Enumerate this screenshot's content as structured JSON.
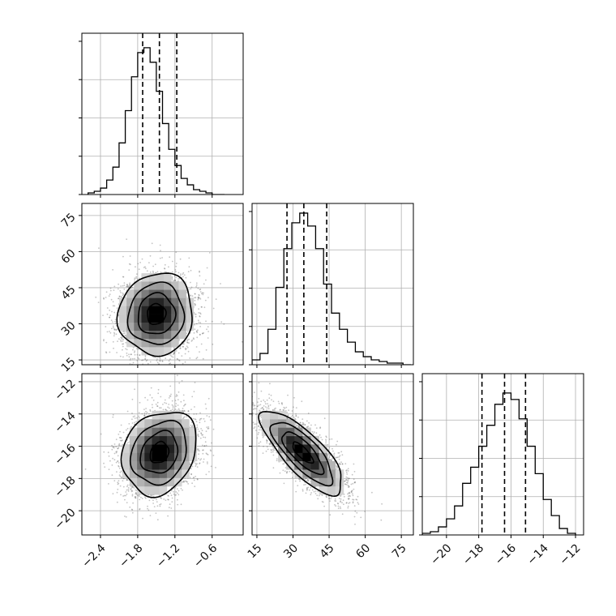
{
  "chart_data": {
    "type": "corner",
    "colors": {
      "ink": "#000000",
      "grid": "#b0b0b0",
      "points": "#555555"
    },
    "parameters": [
      {
        "ticks": [
          -2.4,
          -1.8,
          -1.2,
          -0.6
        ],
        "tick_labels": [
          "−2.4",
          "−1.8",
          "−1.2",
          "−0.6"
        ],
        "range": [
          -2.7,
          -0.1
        ]
      },
      {
        "ticks": [
          15,
          30,
          45,
          60,
          75
        ],
        "tick_labels": [
          "15",
          "30",
          "45",
          "60",
          "75"
        ],
        "range": [
          13,
          80
        ]
      },
      {
        "ticks": [
          -20,
          -18,
          -16,
          -14,
          -12
        ],
        "tick_labels": [
          "−20",
          "−18",
          "−16",
          "−14",
          "−12"
        ],
        "range": [
          -21.5,
          -11.5
        ]
      }
    ],
    "histograms": [
      {
        "param": 0,
        "bin_edges": [
          -2.6,
          -2.5,
          -2.4,
          -2.3,
          -2.2,
          -2.1,
          -2.0,
          -1.9,
          -1.8,
          -1.7,
          -1.6,
          -1.5,
          -1.4,
          -1.3,
          -1.2,
          -1.1,
          -1.0,
          -0.9,
          -0.8,
          -0.7,
          -0.6,
          -0.5,
          -0.4
        ],
        "counts": [
          1,
          2,
          4,
          9,
          17,
          32,
          52,
          73,
          88,
          91,
          82,
          64,
          44,
          28,
          18,
          10,
          6,
          3,
          2,
          1,
          0,
          0
        ],
        "quantiles": [
          -1.72,
          -1.45,
          -1.17
        ],
        "ymax": 100
      },
      {
        "param": 1,
        "bin_edges": [
          13,
          16.3,
          19.6,
          22.9,
          26.2,
          29.5,
          32.8,
          36.1,
          39.4,
          42.7,
          46.0,
          49.3,
          52.6,
          55.9,
          59.2,
          62.5,
          65.8,
          69.1,
          72.4,
          75.7,
          79
        ],
        "counts": [
          3,
          7,
          22,
          48,
          72,
          88,
          94,
          86,
          72,
          50,
          32,
          22,
          14,
          8,
          5,
          3,
          2,
          1,
          1,
          0
        ],
        "quantiles": [
          27.5,
          34.5,
          44.0
        ],
        "ymax": 100
      },
      {
        "param": 2,
        "bin_edges": [
          -21.5,
          -21.0,
          -20.5,
          -20.0,
          -19.5,
          -19.0,
          -18.5,
          -18.0,
          -17.5,
          -17.0,
          -16.5,
          -16.0,
          -15.5,
          -15.0,
          -14.5,
          -14.0,
          -13.5,
          -13.0,
          -12.5,
          -12.0
        ],
        "counts": [
          1,
          2,
          5,
          10,
          18,
          32,
          42,
          55,
          68,
          81,
          88,
          84,
          72,
          55,
          38,
          22,
          12,
          4,
          1
        ],
        "quantiles": [
          -17.8,
          -16.4,
          -15.1
        ],
        "ymax": 100
      }
    ],
    "pairs": [
      {
        "x": 0,
        "y": 1,
        "center": [
          -1.5,
          34
        ],
        "sigma": [
          0.3,
          8.5
        ],
        "rho": 0.05,
        "seed": 11
      },
      {
        "x": 0,
        "y": 2,
        "center": [
          -1.45,
          -16.4
        ],
        "sigma": [
          0.3,
          1.3
        ],
        "rho": 0.2,
        "seed": 23
      },
      {
        "x": 1,
        "y": 2,
        "center": [
          34,
          -16.4
        ],
        "sigma": [
          8.5,
          1.3
        ],
        "rho": -0.78,
        "seed": 37
      }
    ],
    "contour_levels_sigma": [
      0.5,
      1.0,
      1.5,
      2.0
    ],
    "grid": true,
    "legend": "none"
  }
}
